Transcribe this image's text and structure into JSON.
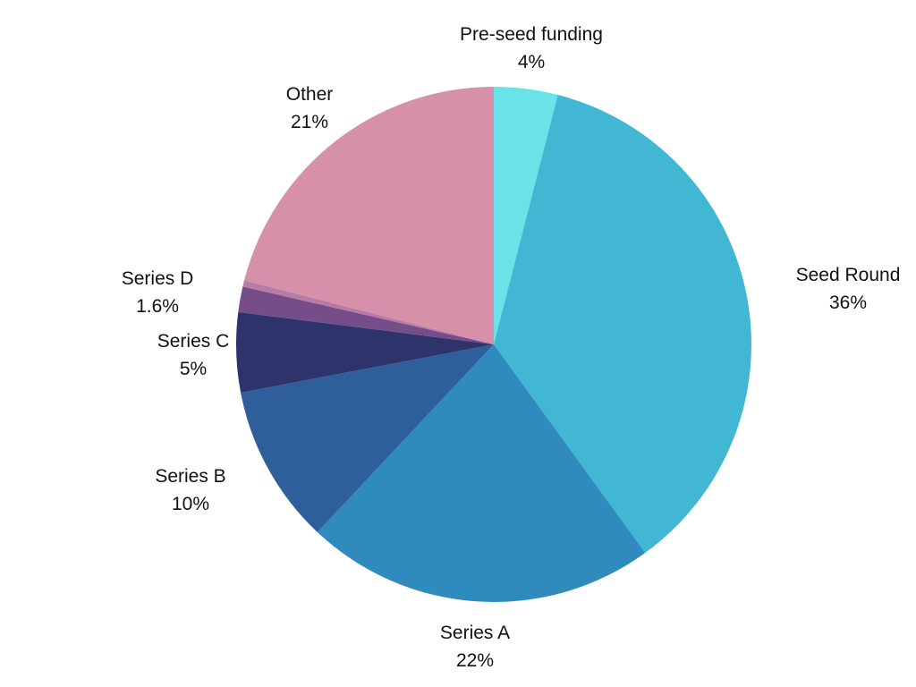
{
  "chart_data": {
    "type": "pie",
    "title": "",
    "start_angle_deg": 0,
    "direction": "clockwise",
    "slices": [
      {
        "label": "Pre-seed funding",
        "value": 4,
        "value_label": "4%",
        "color": "#69e3e8"
      },
      {
        "label": "Seed Round",
        "value": 36,
        "value_label": "36%",
        "color": "#41b7d3"
      },
      {
        "label": "Series A",
        "value": 22,
        "value_label": "22%",
        "color": "#2f8bbd"
      },
      {
        "label": "Series B",
        "value": 10,
        "value_label": "10%",
        "color": "#2e5f9b"
      },
      {
        "label": "Series C",
        "value": 5,
        "value_label": "5%",
        "color": "#2f336c"
      },
      {
        "label": "Series D",
        "value": 1.6,
        "value_label": "1.6%",
        "color": "#744d89"
      },
      {
        "label": "",
        "value": 0.4,
        "value_label": "",
        "color": "#b87ba6"
      },
      {
        "label": "Other",
        "value": 21,
        "value_label": "21%",
        "color": "#d690aa"
      }
    ]
  }
}
